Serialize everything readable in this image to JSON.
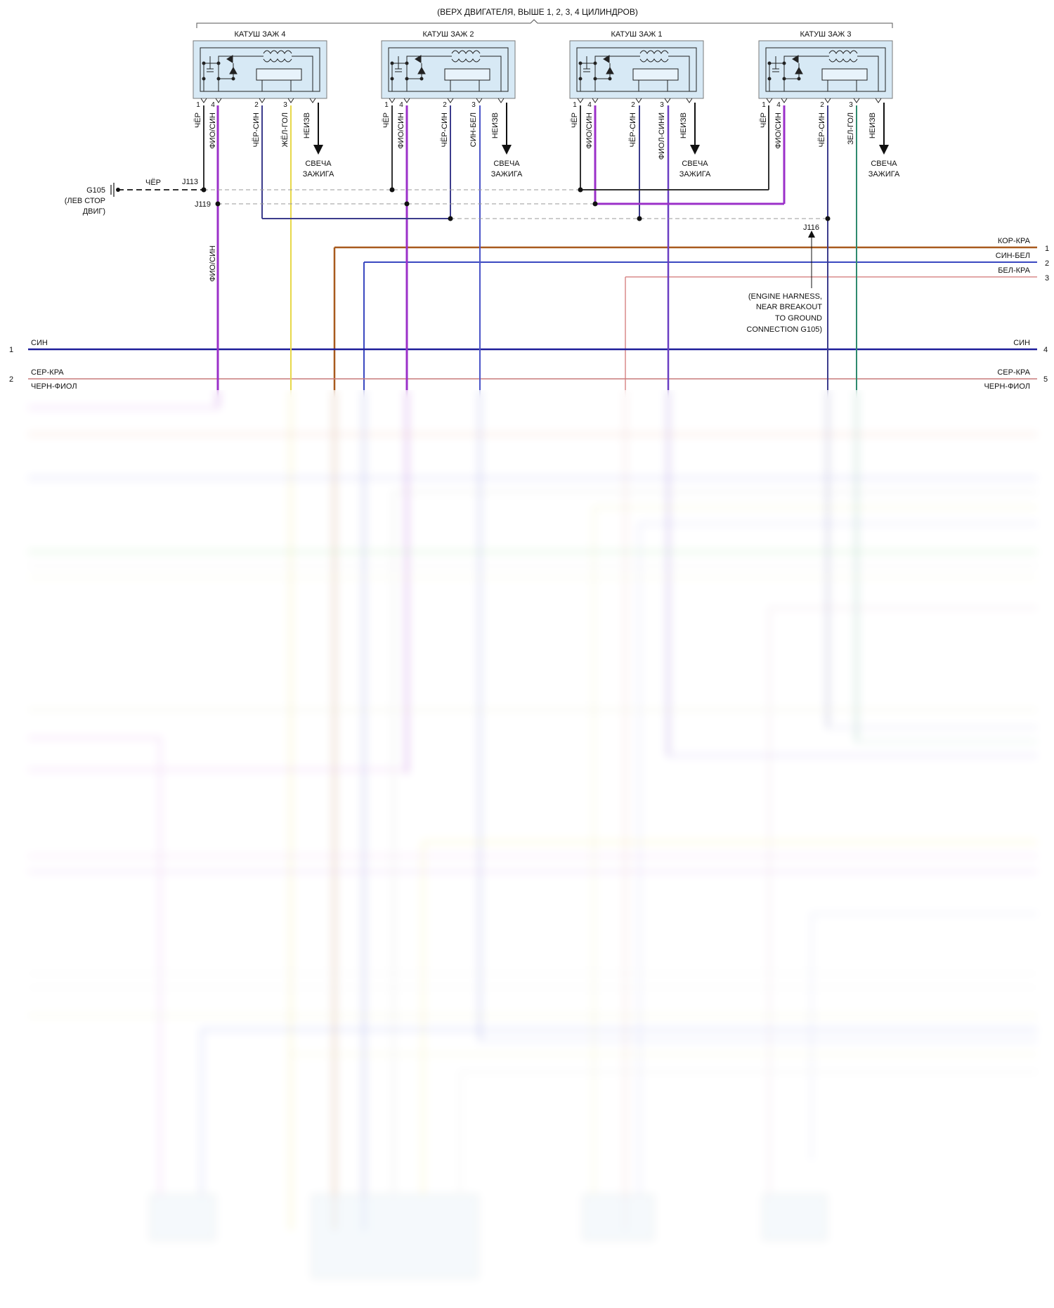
{
  "header": {
    "title": "(ВЕРХ ДВИГАТЕЛЯ, ВЫШЕ 1, 2, 3, 4 ЦИЛИНДРОВ)"
  },
  "coils": [
    {
      "title": "КАТУШ ЗАЖ 4",
      "pins": [
        {
          "num": "1",
          "label": "ЧЁР"
        },
        {
          "num": "4",
          "label": "ФИО/СИН"
        },
        {
          "num": "2",
          "label": "ЧЁР-СИН"
        },
        {
          "num": "3",
          "label": "ЖЁЛ-ГОЛ"
        },
        {
          "num": "",
          "label": "НЕИЗВ"
        }
      ],
      "plug": "СВЕЧА ЗАЖИГА"
    },
    {
      "title": "КАТУШ ЗАЖ 2",
      "pins": [
        {
          "num": "1",
          "label": "ЧЁР"
        },
        {
          "num": "4",
          "label": "ФИО/СИН"
        },
        {
          "num": "2",
          "label": "ЧЁР-СИН"
        },
        {
          "num": "3",
          "label": "СИН-БЕЛ"
        },
        {
          "num": "",
          "label": "НЕИЗВ"
        }
      ],
      "plug": "СВЕЧА ЗАЖИГА"
    },
    {
      "title": "КАТУШ ЗАЖ 1",
      "pins": [
        {
          "num": "1",
          "label": "ЧЁР"
        },
        {
          "num": "4",
          "label": "ФИО/СИН"
        },
        {
          "num": "2",
          "label": "ЧЁР-СИН"
        },
        {
          "num": "3",
          "label": "ФИОЛ-СИНИ"
        },
        {
          "num": "",
          "label": "НЕИЗВ"
        }
      ],
      "plug": "СВЕЧА ЗАЖИГА"
    },
    {
      "title": "КАТУШ ЗАЖ 3",
      "pins": [
        {
          "num": "1",
          "label": "ЧЁР"
        },
        {
          "num": "4",
          "label": "ФИО/СИН"
        },
        {
          "num": "2",
          "label": "ЧЁР-СИН"
        },
        {
          "num": "3",
          "label": "ЗЕЛ-ГОЛ"
        },
        {
          "num": "",
          "label": "НЕИЗВ"
        }
      ],
      "plug": "СВЕЧА ЗАЖИГА"
    }
  ],
  "ground": {
    "id": "G105",
    "loc1": "(ЛЕВ СТОР",
    "loc2": "ДВИГ)",
    "wire": "ЧЁР"
  },
  "splices": {
    "j113": "J113",
    "j119": "J119",
    "j116": "J116"
  },
  "vertical_label": "ФИО/СИН",
  "harness_note": [
    "(ENGINE HARNESS,",
    "NEAR BREAKOUT",
    "TO GROUND",
    "CONNECTION G105)"
  ],
  "right_bus": [
    {
      "label": "КОР-КРА",
      "num": "1"
    },
    {
      "label": "СИН-БЕЛ",
      "num": "2"
    },
    {
      "label": "БЕЛ-КРА",
      "num": "3"
    }
  ],
  "full_bus": [
    {
      "left_num": "1",
      "left_label": "СИН",
      "right_label": "СИН",
      "right_num": "4"
    },
    {
      "left_num": "2",
      "left_label": "СЕР-КРА",
      "right_label": "СЕР-КРА",
      "right_num": "5"
    },
    {
      "left_num": "",
      "left_label": "ЧЕРН-ФИОЛ",
      "right_label": "ЧЕРН-ФИОЛ",
      "right_num": ""
    }
  ],
  "colors": {
    "black": "#333333",
    "purple": "#9b30c9",
    "dark_blue": "#3c3c8c",
    "yellow": "#e8d84a",
    "blue_white": "#4b55c8",
    "violet_blue": "#6a3fc2",
    "green_blue": "#2f8a6e",
    "brown": "#a85a1e",
    "blue_bus": "#3a48c0",
    "pink": "#d98a8a",
    "navy": "#1e1e9a",
    "grey_red": "#c97a7a",
    "box_fill": "#d7e9f5",
    "box_stroke": "#7a7a7a",
    "dash": "#9a9a9a"
  }
}
